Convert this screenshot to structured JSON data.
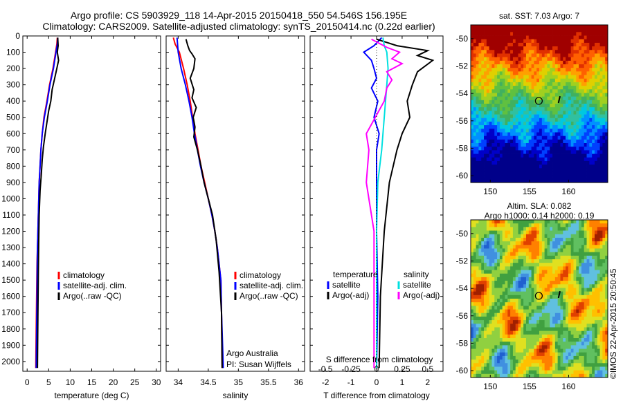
{
  "header": {
    "line1": "Argo profile: CS 5903929_118 14-Apr-2015 20150418_550 54.546S 156.195E",
    "line2": "Climatology: CARS2009. Satellite-adjusted climatology: synTS_20150414.nc (0.22d earlier)"
  },
  "watermark": "©IMOS 22-Apr-2015 20:50:45",
  "colors": {
    "climatology": "#ff0000",
    "satellite": "#0000ff",
    "argo": "#000000",
    "satellite_s": "#00e0e0",
    "argo_s": "#ff00ff"
  },
  "chart_data": [
    {
      "id": "temperature",
      "type": "line",
      "xlabel": "temperature (deg C)",
      "ylabel": "",
      "xlim": [
        -1,
        31
      ],
      "ylim": [
        2060,
        0
      ],
      "xticks": [
        "0",
        "5",
        "10",
        "15",
        "20",
        "25",
        "30"
      ],
      "yticks": [
        "0",
        "100",
        "200",
        "300",
        "400",
        "500",
        "600",
        "700",
        "800",
        "900",
        "1000",
        "1100",
        "1200",
        "1300",
        "1400",
        "1500",
        "1600",
        "1700",
        "1800",
        "1900",
        "2000"
      ],
      "legend": [
        "climatology",
        "satellite-adj. clim.",
        "Argo(..raw -QC)"
      ],
      "series": [
        {
          "name": "climatology",
          "color": "#ff0000",
          "x": [
            7.0,
            6.9,
            6.6,
            6.0,
            5.2,
            4.6,
            3.9,
            3.5,
            3.2,
            3.0,
            2.8,
            2.7,
            2.6,
            2.5,
            2.4,
            2.3,
            2.2,
            2.1,
            2.0
          ],
          "y": [
            10,
            50,
            100,
            200,
            300,
            400,
            500,
            600,
            700,
            800,
            900,
            1000,
            1100,
            1200,
            1300,
            1400,
            1600,
            1800,
            2040
          ]
        },
        {
          "name": "satellite-adj. clim.",
          "color": "#0000ff",
          "x": [
            7.1,
            7.0,
            6.7,
            6.1,
            5.3,
            4.7,
            4.0,
            3.5,
            3.2,
            3.0,
            2.8,
            2.7,
            2.6,
            2.5,
            2.4,
            2.35,
            2.3,
            2.2,
            2.1
          ],
          "y": [
            10,
            50,
            100,
            200,
            300,
            400,
            500,
            600,
            700,
            800,
            900,
            1000,
            1100,
            1200,
            1300,
            1400,
            1600,
            1800,
            2040
          ]
        },
        {
          "name": "Argo(..raw -QC)",
          "color": "#000000",
          "x": [
            7.1,
            7.2,
            7.0,
            7.3,
            6.9,
            6.4,
            5.8,
            5.5,
            5.0,
            4.6,
            4.2,
            3.8,
            3.5,
            3.3,
            3.0,
            2.8,
            2.7,
            2.6,
            2.5,
            2.4
          ],
          "y": [
            10,
            60,
            100,
            150,
            200,
            260,
            330,
            400,
            460,
            530,
            600,
            680,
            760,
            850,
            950,
            1100,
            1250,
            1450,
            1700,
            2040
          ]
        }
      ]
    },
    {
      "id": "salinity",
      "type": "line",
      "xlabel": "salinity",
      "ylabel": "",
      "xlim": [
        33.8,
        36.1
      ],
      "ylim": [
        2060,
        0
      ],
      "xticks": [
        "34",
        "34.5",
        "35",
        "35.5",
        "36"
      ],
      "legend": [
        "climatology",
        "satellite-adj. clim.",
        "Argo(..raw -QC)"
      ],
      "annotation": [
        "Argo Australia",
        "PI: Susan Wijffels"
      ],
      "series": [
        {
          "name": "climatology",
          "color": "#ff0000",
          "x": [
            33.92,
            33.95,
            34.02,
            34.09,
            34.15,
            34.2,
            34.24,
            34.28,
            34.33,
            34.38,
            34.44,
            34.5,
            34.56,
            34.61,
            34.65,
            34.68,
            34.71,
            34.72,
            34.73
          ],
          "y": [
            10,
            50,
            100,
            200,
            300,
            400,
            500,
            600,
            700,
            800,
            900,
            1000,
            1100,
            1200,
            1300,
            1400,
            1500,
            1700,
            2040
          ]
        },
        {
          "name": "satellite-adj. clim.",
          "color": "#0000ff",
          "x": [
            33.98,
            33.99,
            34.0,
            34.05,
            34.12,
            34.18,
            34.23,
            34.27,
            34.32,
            34.37,
            34.43,
            34.5,
            34.56,
            34.61,
            34.65,
            34.68,
            34.71,
            34.72,
            34.75
          ],
          "y": [
            10,
            50,
            100,
            200,
            300,
            400,
            500,
            600,
            700,
            800,
            900,
            1000,
            1100,
            1200,
            1300,
            1400,
            1500,
            1700,
            2040
          ]
        },
        {
          "name": "Argo(..raw -QC)",
          "color": "#000000",
          "x": [
            34.13,
            34.16,
            34.19,
            34.23,
            34.28,
            34.26,
            34.2,
            34.26,
            34.23,
            34.3,
            34.25,
            34.28,
            34.26,
            34.32,
            34.38,
            34.43,
            34.5,
            34.57,
            34.63,
            34.68,
            34.72,
            34.73
          ],
          "y": [
            20,
            60,
            90,
            110,
            140,
            200,
            260,
            330,
            380,
            440,
            500,
            560,
            620,
            700,
            800,
            900,
            1000,
            1100,
            1250,
            1450,
            1700,
            2040
          ]
        }
      ]
    },
    {
      "id": "difference",
      "type": "line",
      "xlabel": "T difference from climatology",
      "xlabel_top": "S difference from climatology",
      "xlim": [
        -2.6,
        2.6
      ],
      "ylim": [
        2060,
        0
      ],
      "xticks": [
        "-2",
        "-1",
        "0",
        "1",
        "2"
      ],
      "xticks_top": [
        "-0.5",
        "-0.25",
        "0",
        "0.25",
        "0.5"
      ],
      "legend": [
        {
          "group": "temperature",
          "items": [
            "satellite",
            "Argo(-adj)"
          ]
        },
        {
          "group": "salinity",
          "items": [
            "satellite",
            "Argo(-adj)"
          ]
        }
      ],
      "series": [
        {
          "name": "T satellite",
          "color": "#0000ff",
          "x": [
            0.2,
            -0.1,
            -0.5,
            -0.2,
            -0.1,
            0.0,
            -0.2,
            0.05,
            -0.1,
            0.1,
            0.0,
            0.0,
            0.0,
            0.05,
            0.0
          ],
          "y": [
            10,
            60,
            100,
            150,
            200,
            260,
            320,
            400,
            500,
            600,
            700,
            900,
            1200,
            1600,
            2040
          ]
        },
        {
          "name": "T Argo(-adj)",
          "color": "#000000",
          "x": [
            0.0,
            0.8,
            2.0,
            1.6,
            2.2,
            1.6,
            1.4,
            1.2,
            1.3,
            1.0,
            0.8,
            0.5,
            0.3,
            0.15,
            0.1
          ],
          "y": [
            20,
            60,
            90,
            120,
            150,
            220,
            300,
            400,
            500,
            600,
            700,
            900,
            1200,
            1600,
            2040
          ]
        },
        {
          "name": "S satellite",
          "color": "#00e0e0",
          "x": [
            0.25,
            0.3,
            0.4,
            0.45,
            0.4,
            0.3,
            0.2,
            0.05,
            0.0,
            0.0,
            0.0
          ],
          "y": [
            10,
            60,
            100,
            200,
            300,
            500,
            700,
            900,
            1200,
            1600,
            2040
          ]
        },
        {
          "name": "S Argo(-adj)",
          "color": "#ff00ff",
          "x": [
            -0.2,
            0.4,
            0.9,
            0.6,
            1.0,
            0.4,
            0.6,
            0.4,
            0.3,
            -0.4,
            -0.3,
            -0.4,
            -0.1,
            -0.1
          ],
          "y": [
            20,
            70,
            100,
            140,
            170,
            220,
            270,
            320,
            400,
            600,
            700,
            900,
            1200,
            2040
          ]
        }
      ]
    },
    {
      "id": "sst_map",
      "type": "heatmap",
      "title": "sat. SST: 7.03 Argo: 7",
      "xlim": [
        147.5,
        165
      ],
      "ylim": [
        -60.5,
        -49
      ],
      "xticks": [
        "150",
        "155",
        "160"
      ],
      "yticks": [
        "-50",
        "-52",
        "-54",
        "-56",
        "-58",
        "-60"
      ],
      "marker": {
        "lon": 156.195,
        "lat": -54.546
      }
    },
    {
      "id": "sla_map",
      "type": "heatmap",
      "title_line1": "Altim. SLA: 0.082",
      "title_line2": "Argo h1000: 0.14 h2000: 0.19",
      "xlim": [
        147.5,
        165
      ],
      "ylim": [
        -60.5,
        -49
      ],
      "xticks": [
        "150",
        "155",
        "160"
      ],
      "yticks": [
        "-50",
        "-52",
        "-54",
        "-56",
        "-58",
        "-60"
      ],
      "marker": {
        "lon": 156.195,
        "lat": -54.546
      }
    }
  ]
}
